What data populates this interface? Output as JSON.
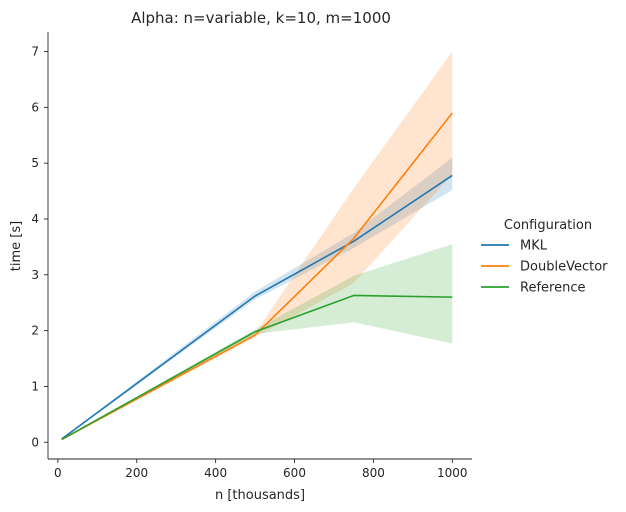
{
  "chart_data": {
    "type": "line",
    "title": "Alpha: n=variable, k=10, m=1000",
    "xlabel": "n [thousands]",
    "ylabel": "time [s]",
    "xlim": [
      -25,
      1050
    ],
    "ylim": [
      -0.3,
      7.35
    ],
    "x_ticks": [
      0,
      200,
      400,
      600,
      800,
      1000
    ],
    "y_ticks": [
      0,
      1,
      2,
      3,
      4,
      5,
      6,
      7
    ],
    "legend": {
      "title": "Configuration",
      "placement": "right"
    },
    "series": [
      {
        "name": "MKL",
        "color": "#1f77b4",
        "x": [
          10,
          500,
          750,
          1000
        ],
        "y": [
          0.06,
          2.62,
          3.6,
          4.78
        ],
        "ci_low": [
          0.05,
          2.56,
          3.48,
          4.52
        ],
        "ci_high": [
          0.07,
          2.7,
          3.75,
          5.1
        ]
      },
      {
        "name": "DoubleVector",
        "color": "#ff7f0e",
        "x": [
          10,
          500,
          750,
          1000
        ],
        "y": [
          0.05,
          1.92,
          3.65,
          5.9
        ],
        "ci_low": [
          0.04,
          1.88,
          2.85,
          4.8
        ],
        "ci_high": [
          0.06,
          1.96,
          4.55,
          7.0
        ]
      },
      {
        "name": "Reference",
        "color": "#2ca02c",
        "x": [
          10,
          500,
          750,
          1000
        ],
        "y": [
          0.05,
          1.98,
          2.63,
          2.6
        ],
        "ci_low": [
          0.04,
          1.94,
          2.15,
          1.77
        ],
        "ci_high": [
          0.06,
          2.02,
          2.98,
          3.55
        ]
      }
    ]
  }
}
